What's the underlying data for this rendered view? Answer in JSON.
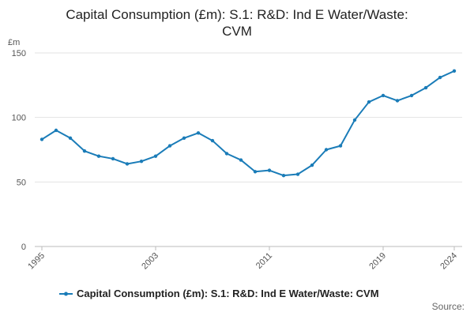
{
  "chart_data": {
    "type": "line",
    "title_lines": [
      "Capital Consumption (£m): S.1: R&D: Ind E Water/Waste:",
      "CVM"
    ],
    "ylabel": "£m",
    "ylim": [
      0,
      150
    ],
    "yticks": [
      0,
      50,
      100,
      150
    ],
    "xlim": [
      1995,
      2024
    ],
    "xtick_labels": [
      "1995",
      "2003",
      "2011",
      "2019",
      "2024"
    ],
    "grid": true,
    "legend_position": "bottom",
    "series": [
      {
        "name": "Capital Consumption (£m): S.1: R&D: Ind E Water/Waste: CVM",
        "color": "#1a7cb8",
        "x": [
          1995,
          1996,
          1997,
          1998,
          1999,
          2000,
          2001,
          2002,
          2003,
          2004,
          2005,
          2006,
          2007,
          2008,
          2009,
          2010,
          2011,
          2012,
          2013,
          2014,
          2015,
          2016,
          2017,
          2018,
          2019,
          2020,
          2021,
          2022,
          2023,
          2024
        ],
        "values": [
          83,
          90,
          84,
          74,
          70,
          68,
          64,
          66,
          70,
          78,
          84,
          88,
          82,
          72,
          67,
          58,
          59,
          55,
          56,
          63,
          75,
          78,
          98,
          112,
          117,
          113,
          117,
          123,
          131,
          136
        ]
      }
    ]
  },
  "source_label": "Source:"
}
